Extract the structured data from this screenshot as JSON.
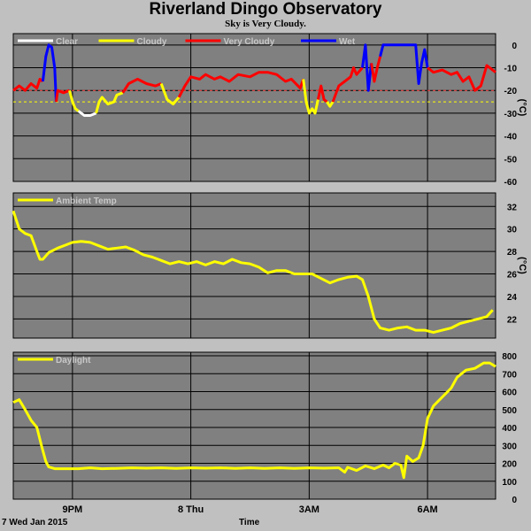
{
  "title": "Riverland Dingo Observatory",
  "subtitle": "Sky is Very Cloudy.",
  "date_label": "7 Wed Jan 2015",
  "time_axis_label": "Time",
  "x_ticks": [
    {
      "hour": 3.0,
      "label": "9PM"
    },
    {
      "hour": 7.0,
      "label": "8 Thu"
    },
    {
      "hour": 11.0,
      "label": "3AM"
    },
    {
      "hour": 15.0,
      "label": "6AM"
    }
  ],
  "x_range_hours": [
    1.0,
    17.3
  ],
  "colors": {
    "panel_bg": "#808080",
    "grid": "#000000",
    "clear": "#ffffff",
    "cloudy": "#ffff00",
    "very_cloudy": "#ff0000",
    "wet": "#0000ff",
    "ambient": "#ffff00",
    "daylight": "#ffff00"
  },
  "chart_data": [
    {
      "type": "line",
      "name": "sky-temperature",
      "ylabel": "(°C)",
      "ylim": [
        -60,
        5
      ],
      "y_ticks": [
        0,
        -10,
        -20,
        -30,
        -40,
        -50,
        -60
      ],
      "grid": true,
      "legend_placement": "top-left",
      "legend": [
        {
          "label": "Clear",
          "color": "#ffffff"
        },
        {
          "label": "Cloudy",
          "color": "#ffff00"
        },
        {
          "label": "Very Cloudy",
          "color": "#ff0000"
        },
        {
          "label": "Wet",
          "color": "#0000ff"
        }
      ],
      "thresholds": [
        {
          "value": -20,
          "color": "#ff4040"
        },
        {
          "value": -25,
          "color": "#ffff00"
        }
      ],
      "segments": [
        {
          "color": "#ff0000",
          "points": [
            [
              1.0,
              -20
            ],
            [
              1.2,
              -18
            ],
            [
              1.4,
              -20
            ],
            [
              1.6,
              -17
            ],
            [
              1.8,
              -19
            ],
            [
              1.9,
              -15
            ],
            [
              2.0,
              -16
            ]
          ]
        },
        {
          "color": "#0000ff",
          "points": [
            [
              2.0,
              -16
            ],
            [
              2.1,
              -5
            ],
            [
              2.2,
              0
            ],
            [
              2.3,
              -1
            ],
            [
              2.4,
              -10
            ],
            [
              2.45,
              -25
            ]
          ]
        },
        {
          "color": "#ff0000",
          "points": [
            [
              2.45,
              -25
            ],
            [
              2.5,
              -20
            ],
            [
              2.7,
              -21
            ],
            [
              2.9,
              -20
            ]
          ]
        },
        {
          "color": "#ffff00",
          "points": [
            [
              2.9,
              -20
            ],
            [
              3.0,
              -25
            ],
            [
              3.1,
              -28
            ],
            [
              3.2,
              -29
            ]
          ]
        },
        {
          "color": "#ffffff",
          "points": [
            [
              3.2,
              -29
            ],
            [
              3.4,
              -31
            ],
            [
              3.6,
              -31
            ],
            [
              3.8,
              -30
            ]
          ]
        },
        {
          "color": "#ffff00",
          "points": [
            [
              3.8,
              -30
            ],
            [
              3.9,
              -25
            ],
            [
              4.0,
              -23
            ],
            [
              4.2,
              -26
            ],
            [
              4.4,
              -25
            ],
            [
              4.5,
              -22
            ],
            [
              4.7,
              -21
            ]
          ]
        },
        {
          "color": "#ff0000",
          "points": [
            [
              4.7,
              -21
            ],
            [
              4.9,
              -17
            ],
            [
              5.2,
              -15
            ],
            [
              5.5,
              -17
            ],
            [
              5.8,
              -18
            ],
            [
              6.0,
              -17
            ]
          ]
        },
        {
          "color": "#ffff00",
          "points": [
            [
              6.0,
              -17
            ],
            [
              6.2,
              -24
            ],
            [
              6.4,
              -26
            ],
            [
              6.6,
              -23
            ]
          ]
        },
        {
          "color": "#ff0000",
          "points": [
            [
              6.6,
              -23
            ],
            [
              6.8,
              -18
            ],
            [
              7.0,
              -14
            ],
            [
              7.3,
              -15
            ],
            [
              7.5,
              -13
            ],
            [
              7.8,
              -15
            ],
            [
              8.0,
              -14
            ],
            [
              8.3,
              -16
            ],
            [
              8.6,
              -13
            ],
            [
              9.0,
              -14
            ],
            [
              9.3,
              -12
            ],
            [
              9.6,
              -12
            ],
            [
              9.9,
              -13
            ],
            [
              10.2,
              -16
            ],
            [
              10.4,
              -15
            ],
            [
              10.7,
              -19
            ],
            [
              10.8,
              -15
            ]
          ]
        },
        {
          "color": "#ffff00",
          "points": [
            [
              10.8,
              -15
            ],
            [
              10.9,
              -25
            ],
            [
              11.0,
              -30
            ],
            [
              11.1,
              -28
            ],
            [
              11.2,
              -30
            ],
            [
              11.3,
              -24
            ]
          ]
        },
        {
          "color": "#ff0000",
          "points": [
            [
              11.3,
              -24
            ],
            [
              11.4,
              -18
            ],
            [
              11.5,
              -24
            ],
            [
              11.6,
              -25
            ]
          ]
        },
        {
          "color": "#ffff00",
          "points": [
            [
              11.6,
              -25
            ],
            [
              11.7,
              -27
            ],
            [
              11.8,
              -25
            ]
          ]
        },
        {
          "color": "#ff0000",
          "points": [
            [
              11.8,
              -25
            ],
            [
              12.0,
              -18
            ],
            [
              12.2,
              -16
            ],
            [
              12.4,
              -14
            ],
            [
              12.5,
              -10
            ],
            [
              12.6,
              -13
            ],
            [
              12.8,
              -10
            ]
          ]
        },
        {
          "color": "#0000ff",
          "points": [
            [
              12.8,
              -10
            ],
            [
              12.9,
              0
            ],
            [
              13.0,
              -20
            ],
            [
              13.1,
              -8
            ]
          ]
        },
        {
          "color": "#ff0000",
          "points": [
            [
              13.1,
              -8
            ],
            [
              13.2,
              -16
            ],
            [
              13.3,
              -10
            ],
            [
              13.4,
              -5
            ]
          ]
        },
        {
          "color": "#0000ff",
          "points": [
            [
              13.4,
              -5
            ],
            [
              13.5,
              0
            ],
            [
              14.0,
              0
            ],
            [
              14.3,
              0
            ],
            [
              14.6,
              0
            ],
            [
              14.7,
              -17
            ],
            [
              14.8,
              -8
            ],
            [
              14.9,
              -2
            ],
            [
              15.0,
              -10
            ]
          ]
        },
        {
          "color": "#ff0000",
          "points": [
            [
              15.0,
              -10
            ],
            [
              15.2,
              -12
            ],
            [
              15.5,
              -11
            ],
            [
              15.8,
              -13
            ],
            [
              16.0,
              -12
            ],
            [
              16.2,
              -16
            ],
            [
              16.4,
              -14
            ],
            [
              16.6,
              -20
            ],
            [
              16.8,
              -18
            ],
            [
              17.0,
              -9
            ],
            [
              17.3,
              -12
            ]
          ]
        }
      ]
    },
    {
      "type": "line",
      "name": "ambient-temp",
      "ylabel": "(°C)",
      "ylim": [
        20.3,
        33.2
      ],
      "y_ticks": [
        32,
        30,
        28,
        26,
        24,
        22
      ],
      "grid": true,
      "legend_placement": "top-left",
      "legend": [
        {
          "label": "Ambient Temp",
          "color": "#ffff00"
        }
      ],
      "series": [
        {
          "name": "Ambient Temp",
          "color": "#ffff00",
          "points": [
            [
              1.0,
              31.6
            ],
            [
              1.2,
              30.0
            ],
            [
              1.4,
              29.6
            ],
            [
              1.6,
              29.4
            ],
            [
              1.8,
              28.0
            ],
            [
              1.9,
              27.3
            ],
            [
              2.0,
              27.3
            ],
            [
              2.2,
              27.9
            ],
            [
              2.5,
              28.3
            ],
            [
              2.8,
              28.6
            ],
            [
              3.0,
              28.8
            ],
            [
              3.3,
              28.9
            ],
            [
              3.6,
              28.8
            ],
            [
              3.9,
              28.5
            ],
            [
              4.2,
              28.2
            ],
            [
              4.5,
              28.3
            ],
            [
              4.8,
              28.4
            ],
            [
              5.1,
              28.1
            ],
            [
              5.4,
              27.7
            ],
            [
              5.7,
              27.5
            ],
            [
              6.0,
              27.2
            ],
            [
              6.3,
              26.9
            ],
            [
              6.6,
              27.1
            ],
            [
              6.9,
              26.9
            ],
            [
              7.2,
              27.1
            ],
            [
              7.5,
              26.8
            ],
            [
              7.8,
              27.1
            ],
            [
              8.1,
              26.9
            ],
            [
              8.4,
              27.3
            ],
            [
              8.7,
              27.0
            ],
            [
              9.0,
              26.9
            ],
            [
              9.3,
              26.6
            ],
            [
              9.6,
              26.1
            ],
            [
              9.9,
              26.3
            ],
            [
              10.2,
              26.3
            ],
            [
              10.5,
              26.0
            ],
            [
              10.8,
              26.0
            ],
            [
              11.1,
              26.0
            ],
            [
              11.4,
              25.6
            ],
            [
              11.7,
              25.2
            ],
            [
              12.0,
              25.5
            ],
            [
              12.3,
              25.7
            ],
            [
              12.6,
              25.8
            ],
            [
              12.8,
              25.5
            ],
            [
              13.0,
              24.0
            ],
            [
              13.2,
              22.0
            ],
            [
              13.4,
              21.2
            ],
            [
              13.7,
              21.0
            ],
            [
              14.0,
              21.2
            ],
            [
              14.3,
              21.3
            ],
            [
              14.6,
              21.0
            ],
            [
              14.9,
              21.0
            ],
            [
              15.2,
              20.8
            ],
            [
              15.5,
              21.0
            ],
            [
              15.8,
              21.2
            ],
            [
              16.1,
              21.6
            ],
            [
              16.4,
              21.8
            ],
            [
              16.7,
              22.0
            ],
            [
              17.0,
              22.2
            ],
            [
              17.2,
              22.8
            ]
          ]
        }
      ]
    },
    {
      "type": "line",
      "name": "daylight",
      "ylabel": "",
      "ylim": [
        0,
        820
      ],
      "y_ticks": [
        800,
        700,
        600,
        500,
        400,
        300,
        200,
        100,
        0
      ],
      "grid": true,
      "legend_placement": "top-left",
      "legend": [
        {
          "label": "Daylight",
          "color": "#ffff00"
        }
      ],
      "series": [
        {
          "name": "Daylight",
          "color": "#ffff00",
          "points": [
            [
              1.0,
              540
            ],
            [
              1.2,
              555
            ],
            [
              1.4,
              500
            ],
            [
              1.6,
              440
            ],
            [
              1.8,
              400
            ],
            [
              1.95,
              300
            ],
            [
              2.1,
              210
            ],
            [
              2.2,
              180
            ],
            [
              2.4,
              170
            ],
            [
              2.8,
              170
            ],
            [
              3.2,
              170
            ],
            [
              3.6,
              175
            ],
            [
              4.0,
              170
            ],
            [
              4.5,
              172
            ],
            [
              5.0,
              175
            ],
            [
              5.5,
              173
            ],
            [
              6.0,
              175
            ],
            [
              6.5,
              172
            ],
            [
              7.0,
              175
            ],
            [
              7.5,
              173
            ],
            [
              8.0,
              175
            ],
            [
              8.5,
              172
            ],
            [
              9.0,
              175
            ],
            [
              9.5,
              172
            ],
            [
              10.0,
              175
            ],
            [
              10.5,
              172
            ],
            [
              11.0,
              175
            ],
            [
              11.5,
              173
            ],
            [
              12.0,
              175
            ],
            [
              12.2,
              150
            ],
            [
              12.3,
              178
            ],
            [
              12.6,
              160
            ],
            [
              12.9,
              185
            ],
            [
              13.2,
              170
            ],
            [
              13.5,
              190
            ],
            [
              13.7,
              175
            ],
            [
              13.9,
              200
            ],
            [
              14.1,
              190
            ],
            [
              14.2,
              120
            ],
            [
              14.3,
              240
            ],
            [
              14.5,
              210
            ],
            [
              14.7,
              230
            ],
            [
              14.85,
              300
            ],
            [
              15.0,
              450
            ],
            [
              15.2,
              520
            ],
            [
              15.5,
              570
            ],
            [
              15.8,
              620
            ],
            [
              16.0,
              680
            ],
            [
              16.3,
              720
            ],
            [
              16.6,
              730
            ],
            [
              16.9,
              760
            ],
            [
              17.1,
              760
            ],
            [
              17.3,
              740
            ]
          ]
        }
      ]
    }
  ]
}
